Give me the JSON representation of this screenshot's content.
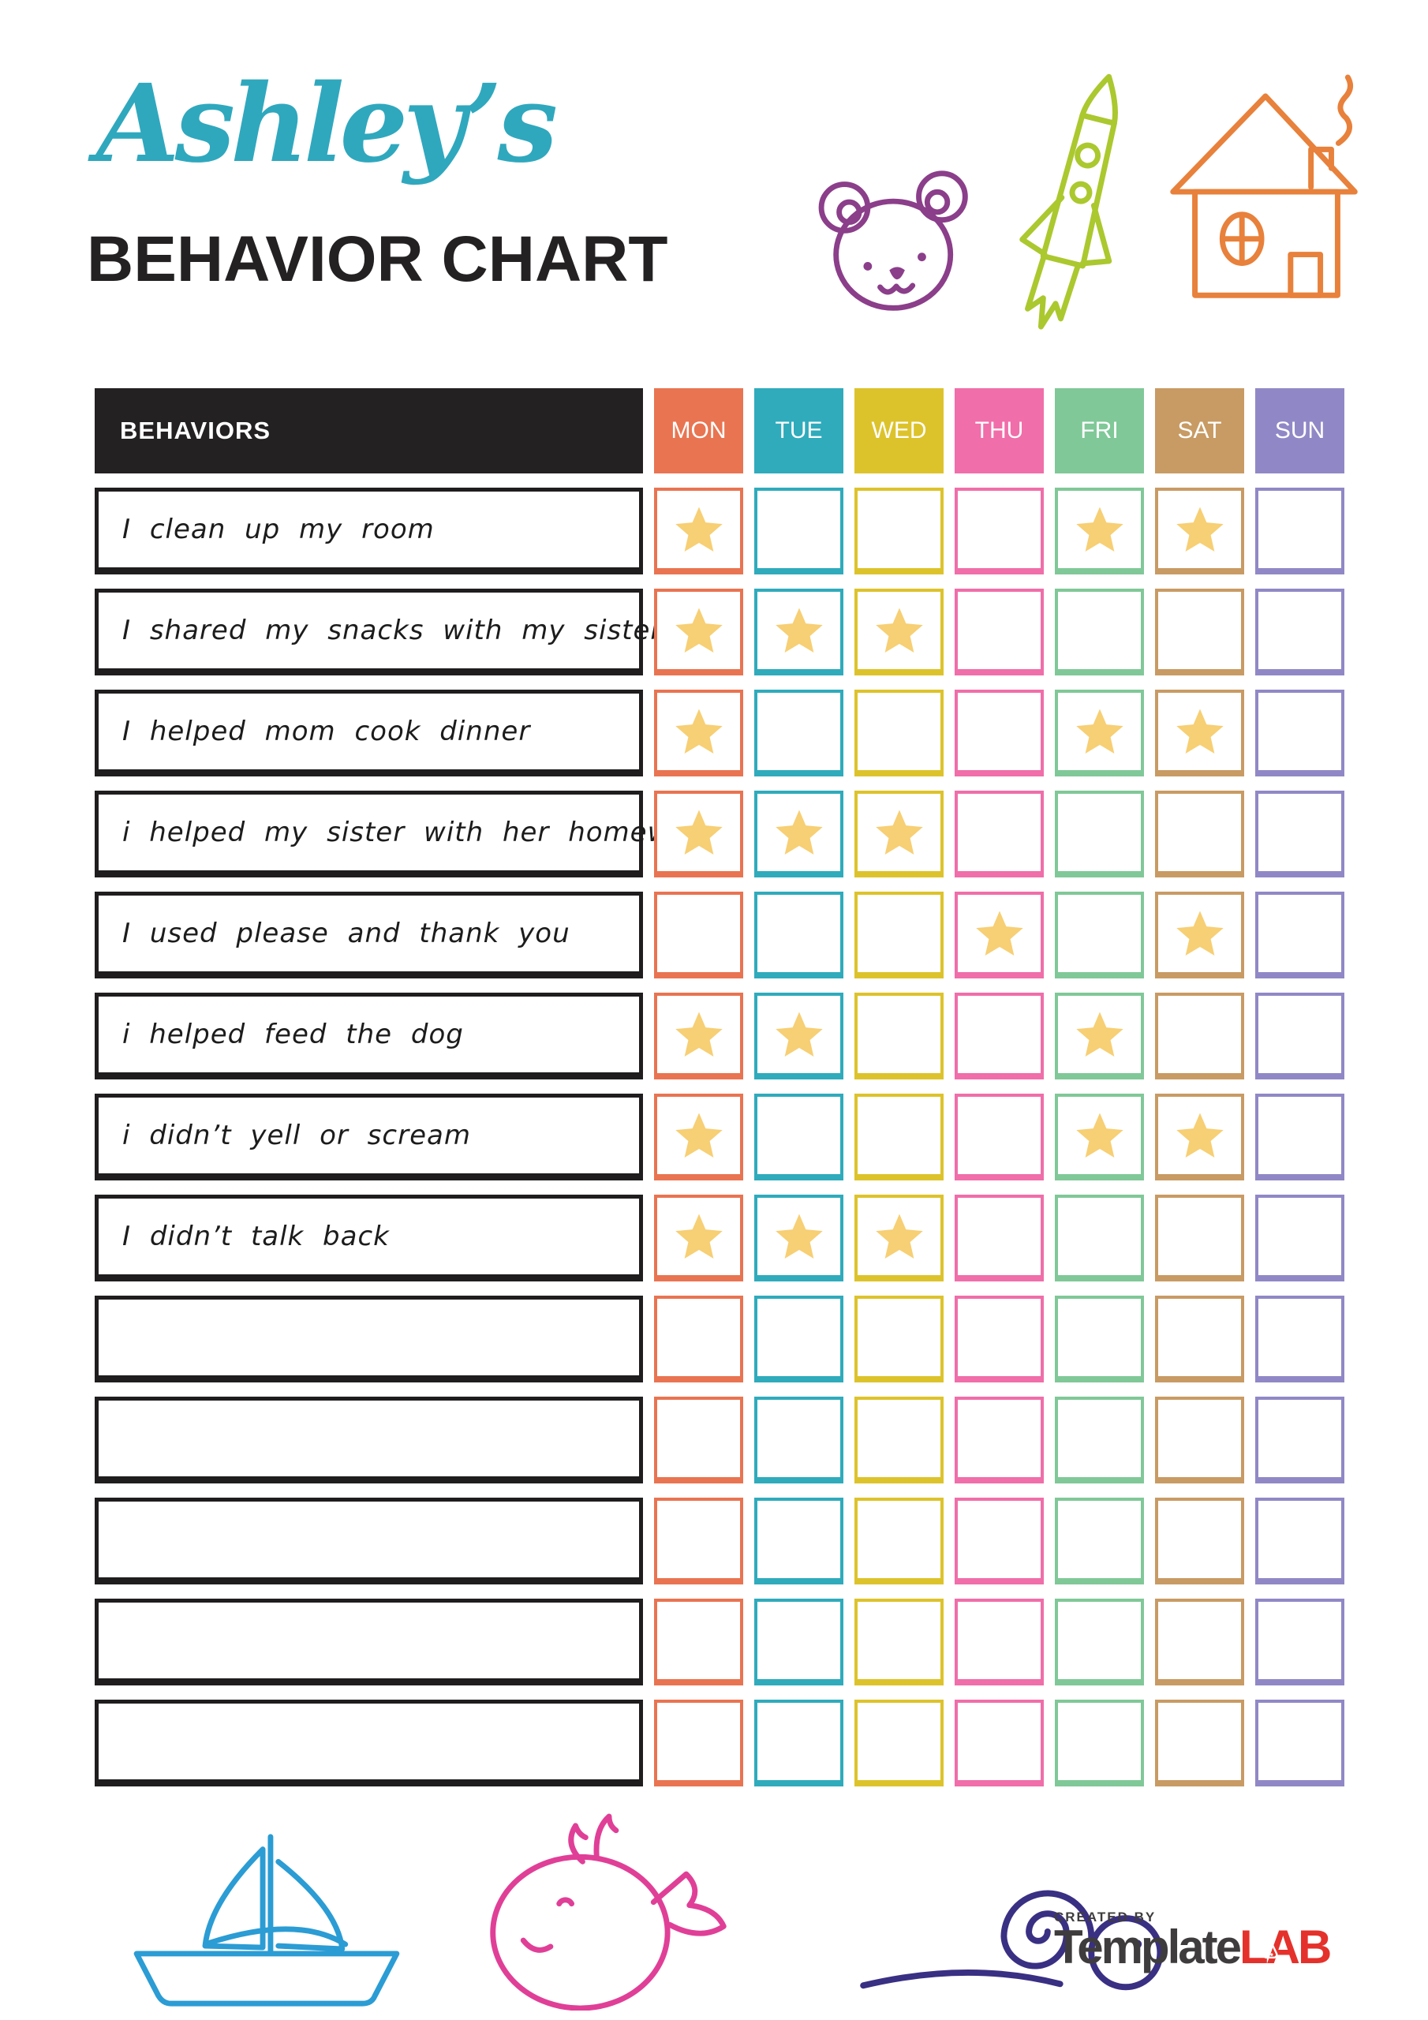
{
  "header": {
    "name": "Ashley’s",
    "name_color": "#2FA8BE",
    "title": "BEHAVIOR CHART",
    "title_color": "#242122"
  },
  "top_icons": [
    {
      "name": "bear-icon",
      "color": "#8B3E8A"
    },
    {
      "name": "rocket-icon",
      "color": "#ABC82F"
    },
    {
      "name": "house-icon",
      "color": "#E8813B"
    }
  ],
  "table": {
    "behaviors_header": "BEHAVIORS",
    "header_bg": "#242122",
    "days": [
      {
        "label": "MON",
        "color": "#E97451"
      },
      {
        "label": "TUE",
        "color": "#2FABBC"
      },
      {
        "label": "WED",
        "color": "#DDC32B"
      },
      {
        "label": "THU",
        "color": "#F06EA9"
      },
      {
        "label": "FRI",
        "color": "#80C898"
      },
      {
        "label": "SAT",
        "color": "#C89B64"
      },
      {
        "label": "SUN",
        "color": "#9088C6"
      }
    ],
    "star_color": "#F7CF74",
    "rows": [
      {
        "behavior": "I clean up my room",
        "stars": [
          "MON",
          "FRI",
          "SAT"
        ]
      },
      {
        "behavior": "I shared my snacks with my sister",
        "stars": [
          "MON",
          "TUE",
          "WED"
        ]
      },
      {
        "behavior": "I helped mom cook dinner",
        "stars": [
          "MON",
          "FRI",
          "SAT"
        ]
      },
      {
        "behavior": "i helped my sister with her homework",
        "stars": [
          "MON",
          "TUE",
          "WED"
        ]
      },
      {
        "behavior": "I used please and thank you",
        "stars": [
          "THU",
          "SAT"
        ]
      },
      {
        "behavior": "i helped feed the dog",
        "stars": [
          "MON",
          "TUE",
          "FRI"
        ]
      },
      {
        "behavior": "i didn’t yell or scream",
        "stars": [
          "MON",
          "FRI",
          "SAT"
        ]
      },
      {
        "behavior": "I didn’t talk back",
        "stars": [
          "MON",
          "TUE",
          "WED"
        ]
      },
      {
        "behavior": "",
        "stars": []
      },
      {
        "behavior": "",
        "stars": []
      },
      {
        "behavior": "",
        "stars": []
      },
      {
        "behavior": "",
        "stars": []
      },
      {
        "behavior": "",
        "stars": []
      }
    ]
  },
  "bottom_icons": [
    {
      "name": "sailboat-icon",
      "color": "#2B9CD4"
    },
    {
      "name": "whale-icon",
      "color": "#E03F97"
    },
    {
      "name": "snail-icon",
      "color": "#393083"
    }
  ],
  "footer": {
    "created_by": "CREATED BY",
    "brand_primary": "Template",
    "brand_accent": "LAB",
    "brand_primary_color": "#3F3C3D",
    "brand_accent_color": "#E5312B"
  }
}
